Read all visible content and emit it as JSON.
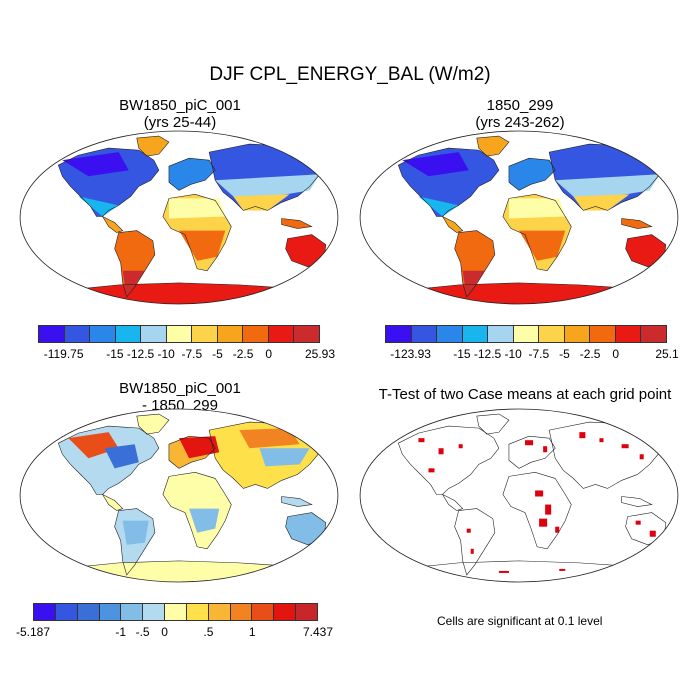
{
  "title": "DJF CPL_ENERGY_BAL (W/m2)",
  "panels": [
    {
      "title_line1": "BW1850_piC_001",
      "title_line2": "(yrs 25-44)"
    },
    {
      "title_line1": "1850_299",
      "title_line2": "(yrs 243-262)"
    },
    {
      "title_line1": "BW1850_piC_001",
      "title_line2": "- 1850_299"
    },
    {
      "title_line1": "T-Test of two Case means at each grid point"
    }
  ],
  "colorbars": {
    "absolute": {
      "colors": [
        "#3a10f0",
        "#3556e0",
        "#2a86e8",
        "#19b5ee",
        "#a6d6ef",
        "#fefda8",
        "#fdd34a",
        "#f6a51d",
        "#f16a10",
        "#e91a14",
        "#cc2b2d"
      ],
      "left": {
        "labels": [
          "-119.75",
          "-15",
          "-12.5",
          "-10",
          "-7.5",
          "-5",
          "-2.5",
          "0",
          "25.93"
        ]
      },
      "right": {
        "labels": [
          "-123.93",
          "-15",
          "-12.5",
          "-10",
          "-7.5",
          "-5",
          "-2.5",
          "0",
          "25.1"
        ]
      }
    },
    "diff": {
      "colors": [
        "#3a10f0",
        "#3556e0",
        "#3a6fd8",
        "#4e93e0",
        "#82bde8",
        "#b4daf0",
        "#fefda8",
        "#fde04a",
        "#f9b634",
        "#f28322",
        "#e94d18",
        "#e3150f",
        "#c8272a"
      ],
      "labels": [
        "-5.187",
        "-1",
        "-.5",
        "0",
        ".5",
        "1",
        "7.437"
      ]
    }
  },
  "note": "Cells are significant at 0.1 level",
  "map_colors": {
    "land_outline": "#222222",
    "significant": "#e0000d"
  }
}
